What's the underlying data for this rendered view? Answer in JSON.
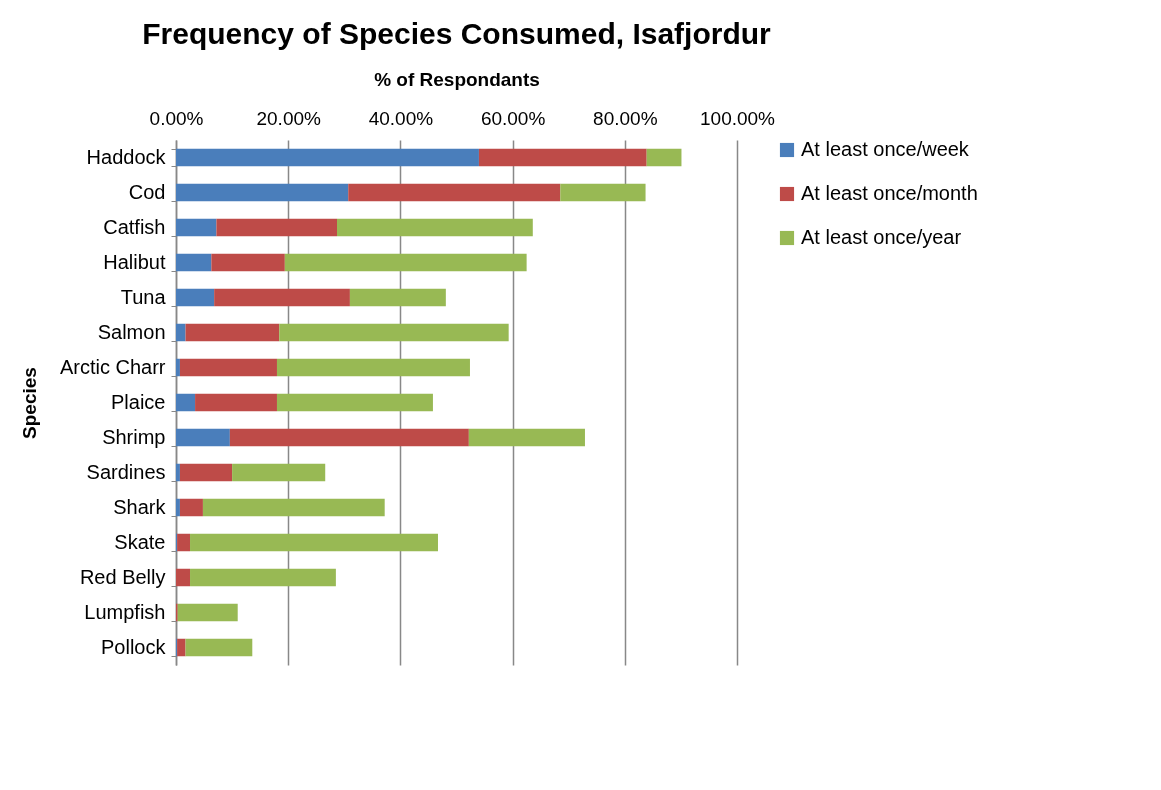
{
  "chart_data": {
    "type": "bar",
    "orientation": "horizontal",
    "stacked": true,
    "title": "Frequency of Species Consumed, Isafjordur",
    "xlabel": "% of Respondants",
    "ylabel": "Species",
    "categories": [
      "Haddock",
      "Cod",
      "Catfish",
      "Halibut",
      "Tuna",
      "Salmon",
      "Arctic Charr",
      "Plaice",
      "Shrimp",
      "Sardines",
      "Shark",
      "Skate",
      "Red Belly",
      "Lumpfish",
      "Pollock"
    ],
    "series": [
      {
        "name": "At least once/week",
        "color": "#4a7ebb",
        "values": [
          54.0,
          30.7,
          7.2,
          6.3,
          6.8,
          1.7,
          0.7,
          3.4,
          9.6,
          0.7,
          0.7,
          0.2,
          0,
          0,
          0.2
        ]
      },
      {
        "name": "At least once/month",
        "color": "#be4b48",
        "values": [
          29.9,
          37.8,
          21.5,
          13.1,
          24.2,
          16.7,
          17.3,
          14.6,
          42.6,
          9.3,
          4.1,
          2.3,
          2.5,
          0.3,
          1.5
        ]
      },
      {
        "name": "At least once/year",
        "color": "#98b954",
        "values": [
          6.2,
          15.2,
          34.9,
          43.1,
          17.1,
          40.9,
          34.4,
          27.8,
          20.7,
          16.6,
          32.4,
          44.2,
          26.0,
          10.7,
          11.9
        ]
      }
    ],
    "xlim": [
      0,
      100
    ],
    "xticks": [
      {
        "value": 0,
        "label": "0.00%"
      },
      {
        "value": 20,
        "label": "20.00%"
      },
      {
        "value": 40,
        "label": "40.00%"
      },
      {
        "value": 60,
        "label": "60.00%"
      },
      {
        "value": 80,
        "label": "80.00%"
      },
      {
        "value": 100,
        "label": "100.00%"
      }
    ],
    "grid": "x",
    "legend": "right"
  }
}
